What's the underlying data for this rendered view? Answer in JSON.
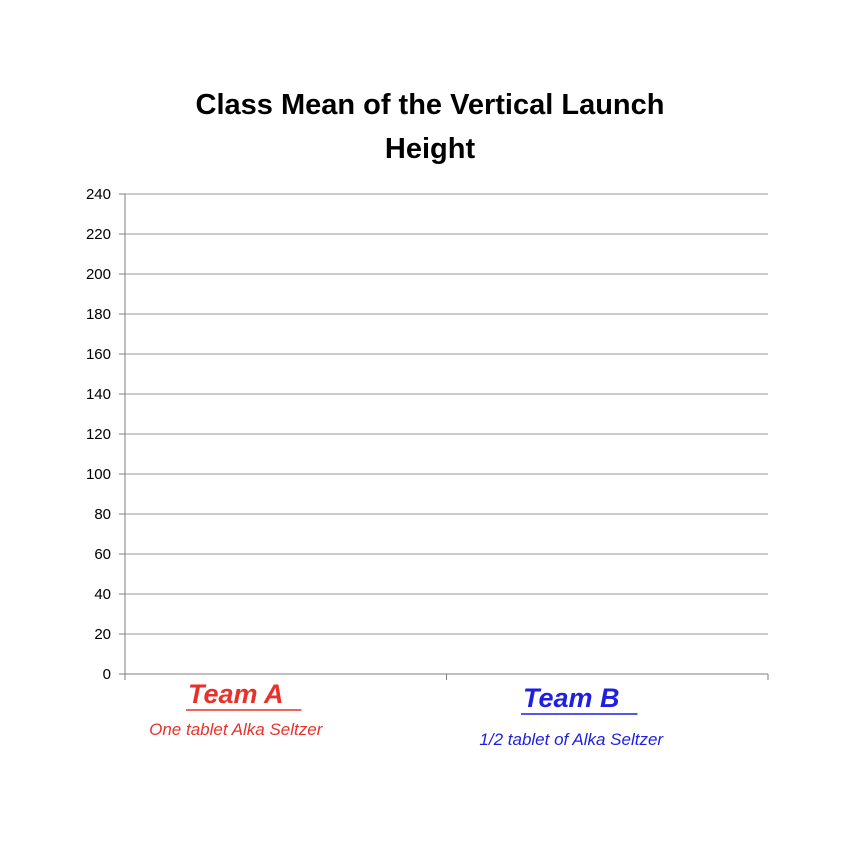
{
  "chart_data": {
    "type": "bar",
    "title_lines": [
      "Class Mean of the Vertical Launch",
      "Height"
    ],
    "ylim": [
      0,
      240
    ],
    "y_ticks": [
      0,
      20,
      40,
      60,
      80,
      100,
      120,
      140,
      160,
      180,
      200,
      220,
      240
    ],
    "grid": true,
    "categories": [
      {
        "name": "Team A",
        "description": "One tablet Alka Seltzer",
        "color": "#e8312a"
      },
      {
        "name": "Team B",
        "description": "1/2 tablet of Alka Seltzer",
        "color": "#1f1fe0"
      }
    ],
    "values": [
      null,
      null
    ]
  }
}
